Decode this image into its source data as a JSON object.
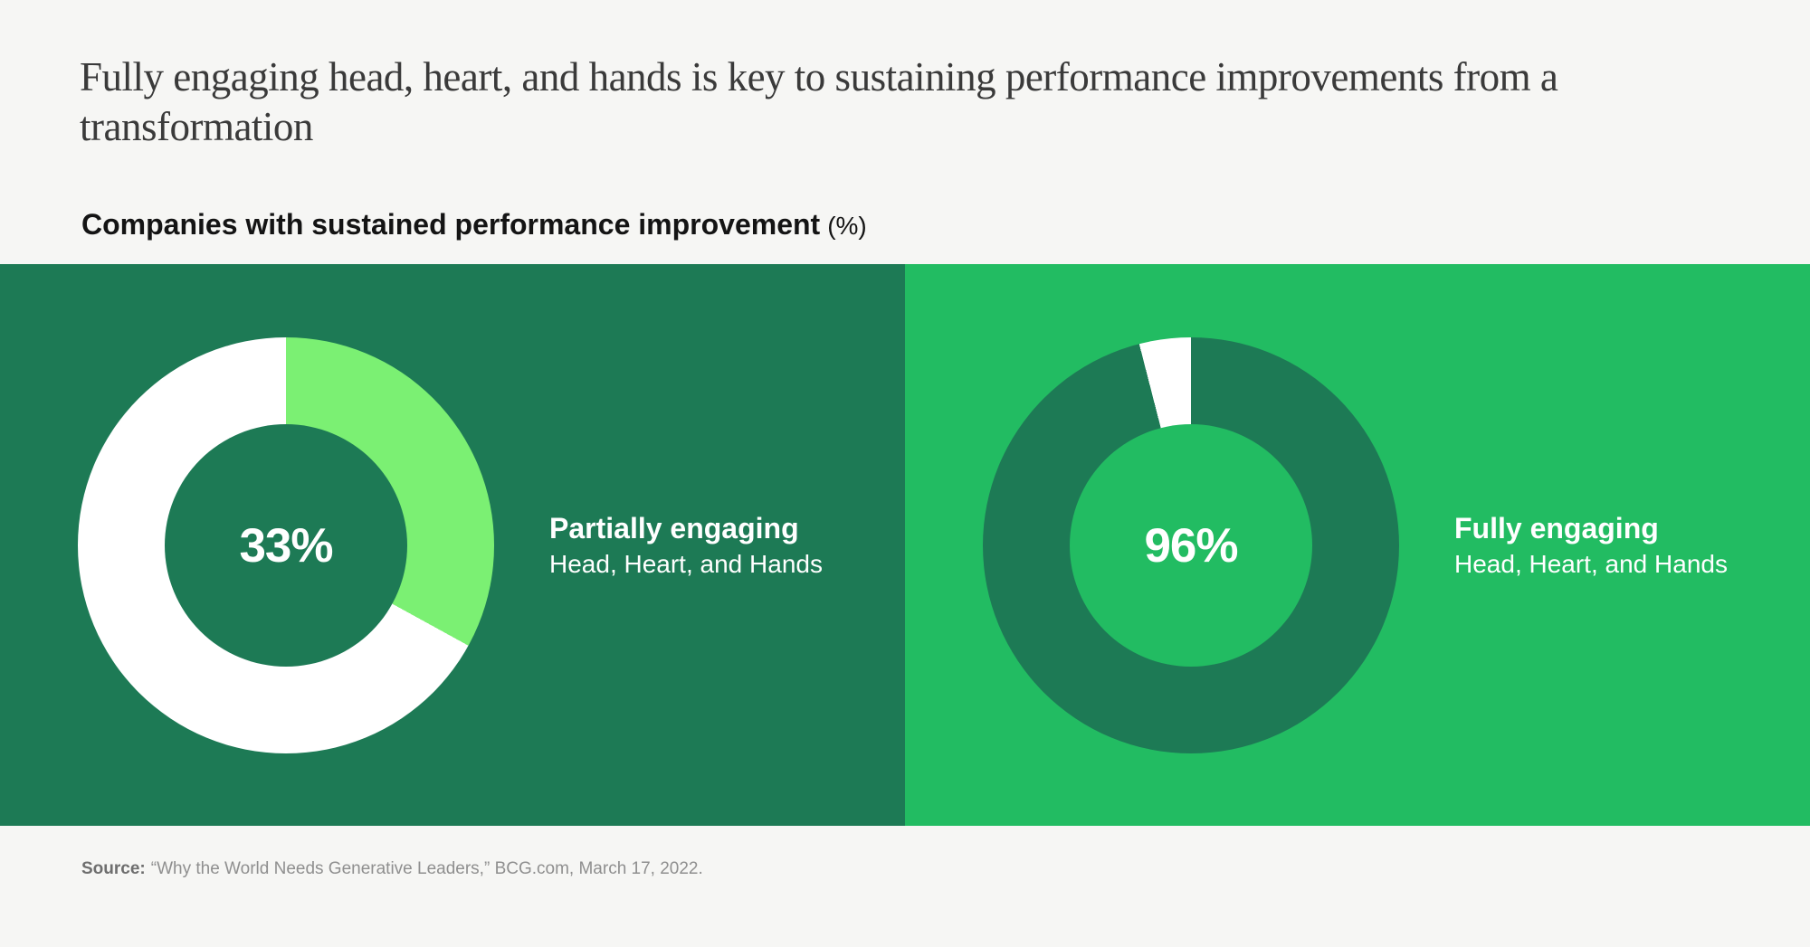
{
  "page": {
    "background": "#f6f6f4",
    "title": "Fully engaging head, heart, and hands is key to sustaining performance improvements from a transformation",
    "subtitle": "Companies with sustained performance improvement",
    "subtitle_unit": "(%)",
    "source_label": "Source:",
    "source_text": "“Why the World Needs Generative Leaders,” BCG.com, March 17, 2022."
  },
  "chart_data": {
    "type": "pie",
    "variant": "donut",
    "title": "Companies with sustained performance improvement (%)",
    "legend_position": "right-of-each-donut",
    "charts": [
      {
        "label": "Partially engaging",
        "sublabel": "Head, Heart, and Hands",
        "value": 33,
        "value_label": "33%",
        "remainder": 67,
        "slice_color": "#7bf073",
        "remainder_color": "#ffffff",
        "panel_bg": "#1d7a55",
        "text_color": "#ffffff"
      },
      {
        "label": "Fully engaging",
        "sublabel": "Head, Heart, and Hands",
        "value": 96,
        "value_label": "96%",
        "remainder": 4,
        "slice_color": "#1d7a55",
        "remainder_color": "#ffffff",
        "panel_bg": "#22bc62",
        "text_color": "#ffffff"
      }
    ]
  }
}
